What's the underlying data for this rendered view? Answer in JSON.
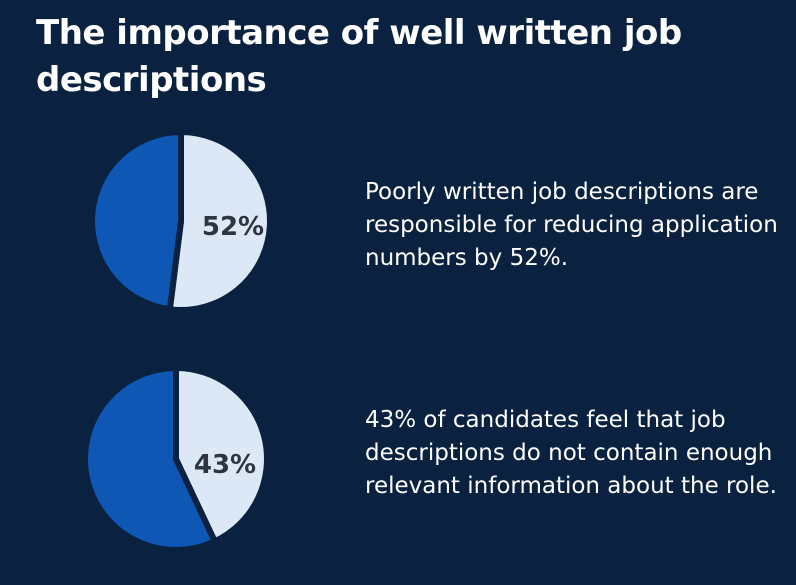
{
  "title": "The importance of well written job descriptions",
  "colors": {
    "background": "#0a2240",
    "highlight": "#dde8f7",
    "remainder": "#0e57b4",
    "label": "#2e3440"
  },
  "chart_data": [
    {
      "type": "pie",
      "values": [
        52,
        48
      ],
      "label": "52%",
      "caption": "Poorly written job descriptions are responsible for reducing application numbers by 52%."
    },
    {
      "type": "pie",
      "values": [
        43,
        57
      ],
      "label": "43%",
      "caption": "43% of candidates feel that job descriptions do not contain enough relevant information about the role."
    }
  ]
}
